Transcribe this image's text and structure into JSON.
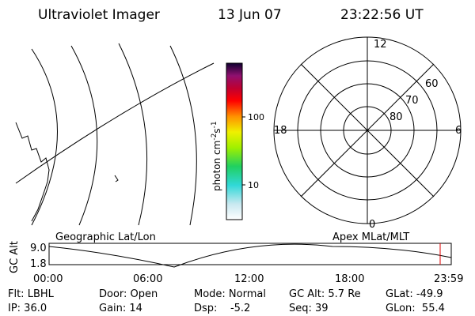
{
  "header": {
    "instrument": "Ultraviolet Imager",
    "date": "13 Jun 07",
    "time": "23:22:56 UT"
  },
  "colorbar": {
    "unit": "photon cm",
    "exp1": "-2",
    "unit2": "s",
    "exp2": "-1",
    "ticks": [
      "100",
      "10"
    ]
  },
  "polar": {
    "mlt": [
      "12",
      "18",
      "6",
      "0"
    ],
    "mlat": [
      "60",
      "70",
      "80"
    ]
  },
  "orbit": {
    "left_label": "Geographic Lat/Lon",
    "right_label": "Apex MLat/MLT",
    "axis_title": "GC Alt",
    "yticks": [
      "9.0",
      "1.8"
    ],
    "xticks": [
      "00:00",
      "06:00",
      "12:00",
      "18:00",
      "23:59"
    ]
  },
  "info": [
    [
      "Flt: LBHL",
      "Door: Open",
      "Mode: Normal",
      "GC Alt: 5.7 Re",
      "GLat: -49.9"
    ],
    [
      "IP: 36.0",
      "Gain: 14",
      "Dsp:    -5.2",
      "Seq: 39",
      "GLon:  55.4"
    ]
  ]
}
